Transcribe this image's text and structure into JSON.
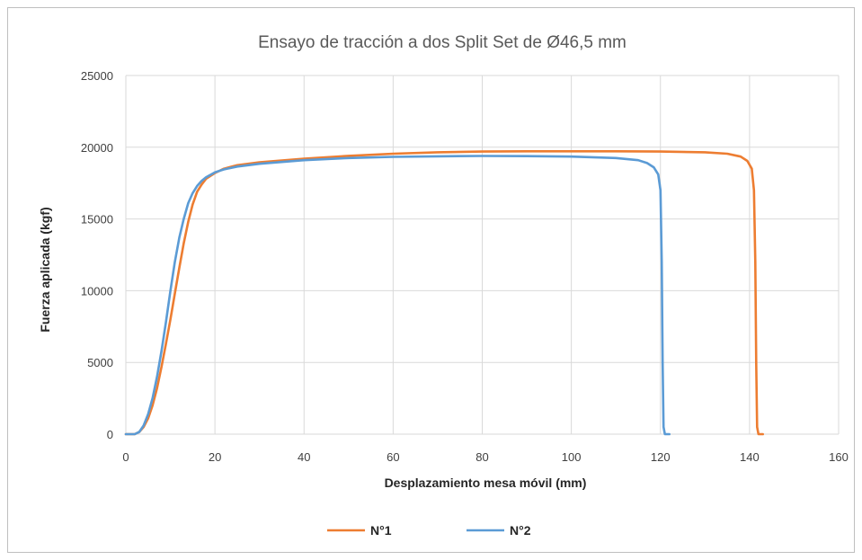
{
  "chart_data": {
    "type": "line",
    "title": "Ensayo de tracción a dos Split Set de Ø46,5 mm",
    "xlabel": "Desplazamiento mesa móvil (mm)",
    "ylabel": "Fuerza aplicada (kgf)",
    "xlim": [
      0,
      160
    ],
    "ylim": [
      0,
      25000
    ],
    "x_ticks": [
      "0",
      "20",
      "40",
      "60",
      "80",
      "100",
      "120",
      "140",
      "160"
    ],
    "y_ticks": [
      "0",
      "5000",
      "10000",
      "15000",
      "20000",
      "25000"
    ],
    "grid": true,
    "legend_position": "bottom",
    "series": [
      {
        "name": "N°1",
        "color": "#ed7d31",
        "x": [
          0,
          2,
          3,
          4,
          5,
          6,
          7,
          8,
          9,
          10,
          11,
          12,
          13,
          14,
          15,
          16,
          17,
          18,
          20,
          22,
          25,
          30,
          40,
          50,
          60,
          70,
          80,
          90,
          100,
          110,
          120,
          130,
          135,
          138,
          139.5,
          140.5,
          141,
          141.3,
          141.5,
          141.7,
          142,
          143
        ],
        "y": [
          0,
          0,
          150,
          500,
          1100,
          2000,
          3200,
          4700,
          6300,
          8000,
          9800,
          11600,
          13300,
          14800,
          16000,
          16900,
          17400,
          17800,
          18200,
          18500,
          18750,
          18950,
          19200,
          19400,
          19550,
          19650,
          19700,
          19720,
          19720,
          19720,
          19700,
          19650,
          19550,
          19350,
          19050,
          18500,
          17000,
          12000,
          5000,
          500,
          0,
          0
        ]
      },
      {
        "name": "N°2",
        "color": "#5b9bd5",
        "x": [
          0,
          2,
          3,
          4,
          5,
          6,
          7,
          8,
          9,
          10,
          11,
          12,
          13,
          14,
          15,
          16,
          17,
          18,
          20,
          22,
          25,
          30,
          40,
          50,
          60,
          70,
          80,
          90,
          100,
          110,
          115,
          117,
          118.5,
          119.5,
          120,
          120.3,
          120.5,
          120.7,
          121,
          122
        ],
        "y": [
          0,
          0,
          150,
          600,
          1400,
          2500,
          4000,
          5800,
          7800,
          10000,
          12000,
          13700,
          15000,
          16100,
          16800,
          17300,
          17650,
          17900,
          18250,
          18450,
          18650,
          18850,
          19100,
          19250,
          19330,
          19370,
          19390,
          19380,
          19350,
          19250,
          19100,
          18900,
          18600,
          18100,
          17000,
          12000,
          5000,
          500,
          0,
          0
        ]
      }
    ]
  }
}
